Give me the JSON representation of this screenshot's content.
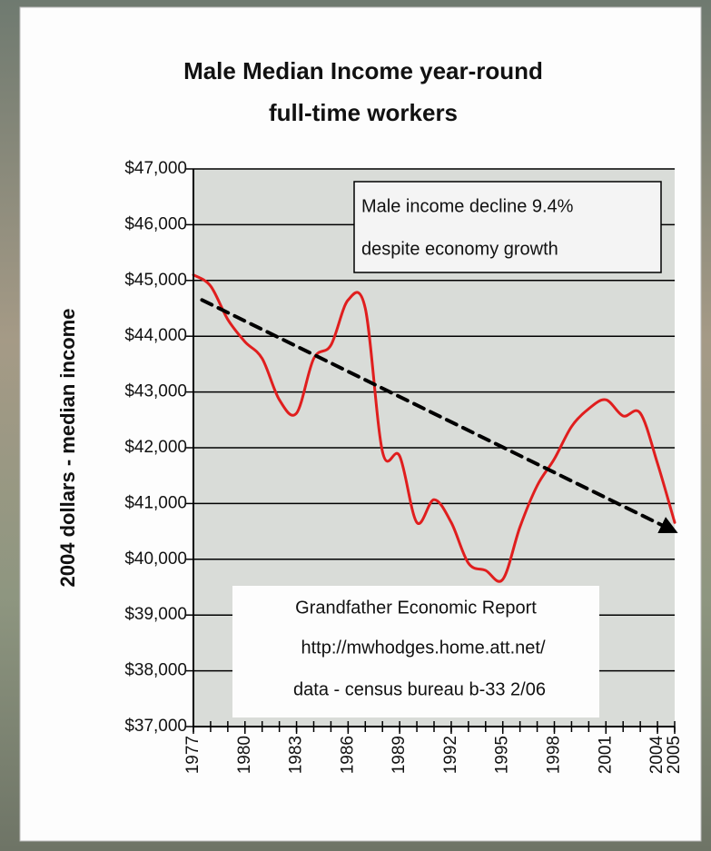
{
  "chart_data": {
    "type": "line",
    "title": [
      "Male Median Income year-round",
      "full-time workers"
    ],
    "ylabel": "2004 dollars - median income",
    "series": [
      {
        "name": "Male median income",
        "color": "#e01e1e",
        "style": "solid",
        "x": [
          1977,
          1978,
          1979,
          1980,
          1981,
          1982,
          1983,
          1984,
          1985,
          1986,
          1987,
          1988,
          1989,
          1990,
          1991,
          1992,
          1993,
          1994,
          1995,
          1996,
          1997,
          1998,
          1999,
          2000,
          2001,
          2002,
          2003,
          2004,
          2005
        ],
        "values": [
          45100,
          44900,
          44300,
          43900,
          43600,
          42860,
          42620,
          43600,
          43840,
          44650,
          44500,
          41930,
          41850,
          40660,
          41070,
          40660,
          39930,
          39800,
          39640,
          40580,
          41320,
          41800,
          42380,
          42700,
          42860,
          42570,
          42620,
          41720,
          40660
        ]
      },
      {
        "name": "Trend",
        "color": "#000000",
        "style": "dashed",
        "x": [
          1977.5,
          2005
        ],
        "values": [
          44650,
          40500
        ]
      }
    ],
    "xlim": [
      1977,
      2005
    ],
    "xticks": [
      1977,
      1980,
      1983,
      1986,
      1989,
      1992,
      1995,
      1998,
      2001,
      2004,
      2005
    ],
    "ylim": [
      37000,
      47000
    ],
    "yticks": [
      {
        "value": 37000,
        "label": "$37,000"
      },
      {
        "value": 38000,
        "label": "$38,000"
      },
      {
        "value": 39000,
        "label": "$39,000"
      },
      {
        "value": 40000,
        "label": "$40,000"
      },
      {
        "value": 41000,
        "label": "$41,000"
      },
      {
        "value": 42000,
        "label": "$42,000"
      },
      {
        "value": 43000,
        "label": "$43,000"
      },
      {
        "value": 44000,
        "label": "$44,000"
      },
      {
        "value": 45000,
        "label": "$45,000"
      },
      {
        "value": 46000,
        "label": "$46,000"
      },
      {
        "value": 47000,
        "label": "$47,000"
      }
    ],
    "grid": true,
    "annotations": [
      [
        "Male income decline 9.4%",
        "despite economy growth"
      ],
      [
        "Grandfather Economic Report",
        "http://mwhodges.home.att.net/",
        "data - census bureau b-33 2/06"
      ]
    ]
  }
}
